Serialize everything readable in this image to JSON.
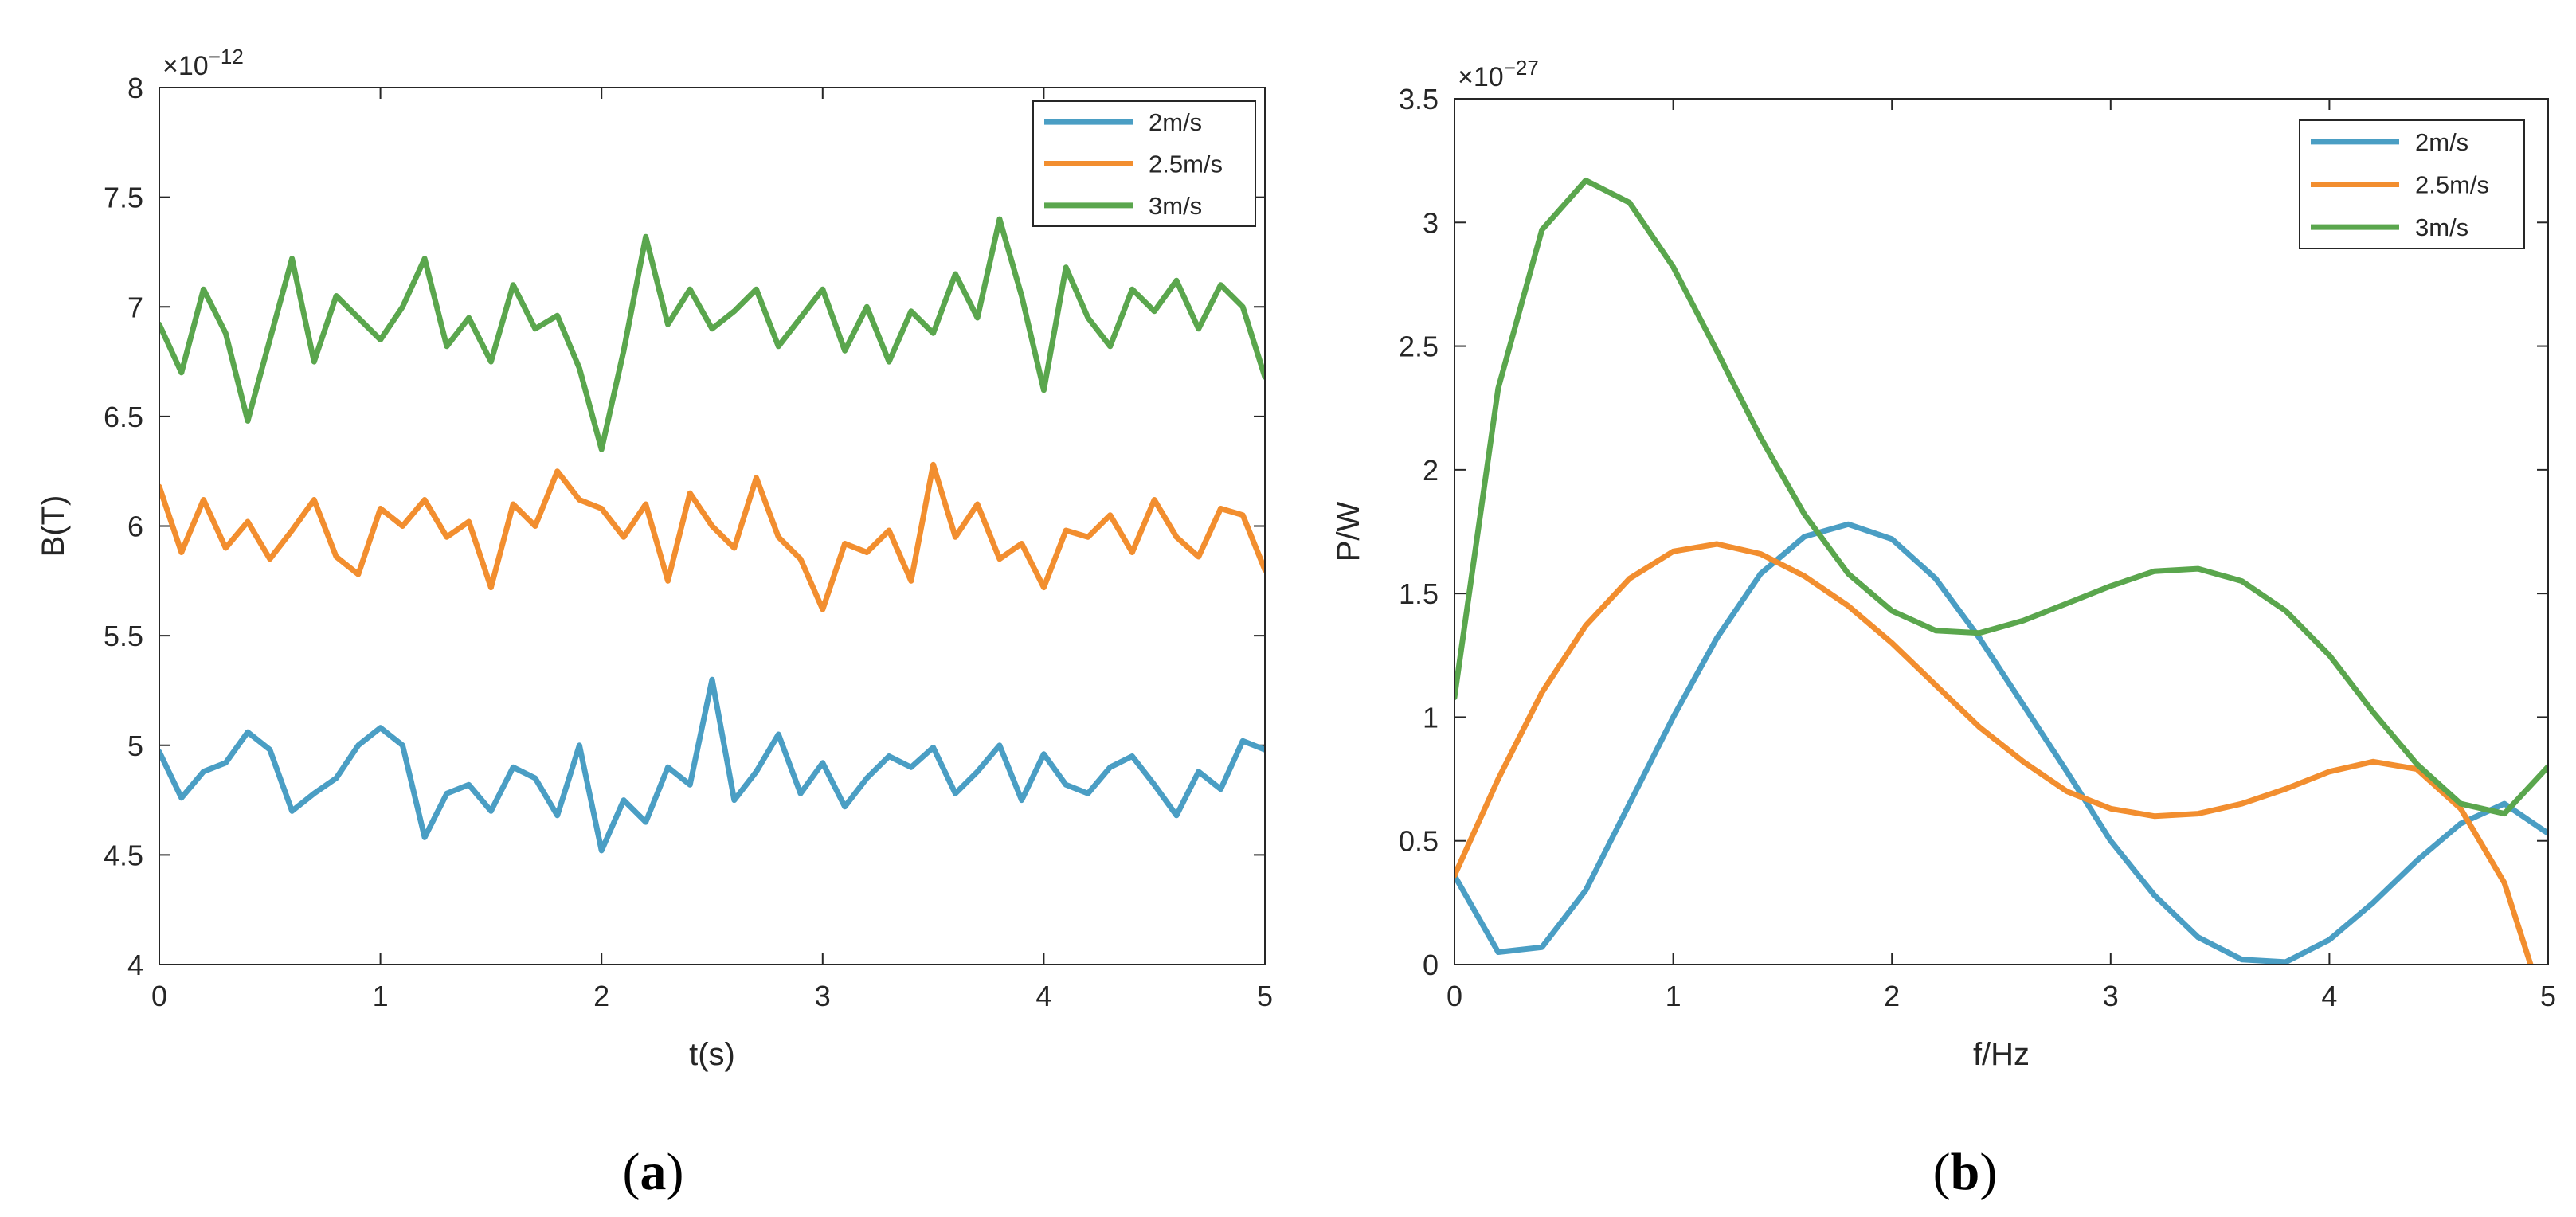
{
  "chart_data": [
    {
      "type": "line",
      "panel_label": "(a)",
      "panel_letter": "a",
      "xlabel": "t(s)",
      "ylabel": "B(T)",
      "multiplier_base": "×10",
      "multiplier_exp": "−12",
      "xlim": [
        0,
        5
      ],
      "ylim": [
        4,
        8
      ],
      "xticks": [
        0,
        1,
        2,
        3,
        4,
        5
      ],
      "yticks": [
        4,
        4.5,
        5,
        5.5,
        6,
        6.5,
        7,
        7.5,
        8
      ],
      "ytick_labels": [
        "4",
        "4.5",
        "5",
        "5.5",
        "6",
        "6.5",
        "7",
        "7.5",
        "8"
      ],
      "grid": false,
      "legend_position": "top-right",
      "series": [
        {
          "name": "2m/s",
          "color": "#4a9ec4",
          "x": [
            0,
            0.1,
            0.2,
            0.3,
            0.4,
            0.5,
            0.6,
            0.7,
            0.8,
            0.9,
            1,
            1.1,
            1.2,
            1.3,
            1.4,
            1.5,
            1.6,
            1.7,
            1.8,
            1.9,
            2,
            2.1,
            2.2,
            2.3,
            2.4,
            2.5,
            2.6,
            2.7,
            2.8,
            2.9,
            3,
            3.1,
            3.2,
            3.3,
            3.4,
            3.5,
            3.6,
            3.7,
            3.8,
            3.9,
            4,
            4.1,
            4.2,
            4.3,
            4.4,
            4.5,
            4.6,
            4.7,
            4.8,
            4.9,
            5
          ],
          "values": [
            4.97,
            4.76,
            4.88,
            4.92,
            5.06,
            4.98,
            4.7,
            4.78,
            4.85,
            5.0,
            5.08,
            5.0,
            4.58,
            4.78,
            4.82,
            4.7,
            4.9,
            4.85,
            4.68,
            5.0,
            4.52,
            4.75,
            4.65,
            4.9,
            4.82,
            5.3,
            4.75,
            4.88,
            5.05,
            4.78,
            4.92,
            4.72,
            4.85,
            4.95,
            4.9,
            4.99,
            4.78,
            4.88,
            5.0,
            4.75,
            4.96,
            4.82,
            4.78,
            4.9,
            4.95,
            4.82,
            4.68,
            4.88,
            4.8,
            5.02,
            4.98
          ]
        },
        {
          "name": "2.5m/s",
          "color": "#f28e2f",
          "x": [
            0,
            0.1,
            0.2,
            0.3,
            0.4,
            0.5,
            0.6,
            0.7,
            0.8,
            0.9,
            1,
            1.1,
            1.2,
            1.3,
            1.4,
            1.5,
            1.6,
            1.7,
            1.8,
            1.9,
            2,
            2.1,
            2.2,
            2.3,
            2.4,
            2.5,
            2.6,
            2.7,
            2.8,
            2.9,
            3,
            3.1,
            3.2,
            3.3,
            3.4,
            3.5,
            3.6,
            3.7,
            3.8,
            3.9,
            4,
            4.1,
            4.2,
            4.3,
            4.4,
            4.5,
            4.6,
            4.7,
            4.8,
            4.9,
            5
          ],
          "values": [
            6.18,
            5.88,
            6.12,
            5.9,
            6.02,
            5.85,
            5.98,
            6.12,
            5.86,
            5.78,
            6.08,
            6.0,
            6.12,
            5.95,
            6.02,
            5.72,
            6.1,
            6.0,
            6.25,
            6.12,
            6.08,
            5.95,
            6.1,
            5.75,
            6.15,
            6.0,
            5.9,
            6.22,
            5.95,
            5.85,
            5.62,
            5.92,
            5.88,
            5.98,
            5.75,
            6.28,
            5.95,
            6.1,
            5.85,
            5.92,
            5.72,
            5.98,
            5.95,
            6.05,
            5.88,
            6.12,
            5.95,
            5.86,
            6.08,
            6.05,
            5.8
          ]
        },
        {
          "name": "3m/s",
          "color": "#5aa64d",
          "x": [
            0,
            0.1,
            0.2,
            0.3,
            0.4,
            0.5,
            0.6,
            0.7,
            0.8,
            0.9,
            1,
            1.1,
            1.2,
            1.3,
            1.4,
            1.5,
            1.6,
            1.7,
            1.8,
            1.9,
            2,
            2.1,
            2.2,
            2.3,
            2.4,
            2.5,
            2.6,
            2.7,
            2.8,
            2.9,
            3,
            3.1,
            3.2,
            3.3,
            3.4,
            3.5,
            3.6,
            3.7,
            3.8,
            3.9,
            4,
            4.1,
            4.2,
            4.3,
            4.4,
            4.5,
            4.6,
            4.7,
            4.8,
            4.9,
            5
          ],
          "values": [
            6.92,
            6.7,
            7.08,
            6.88,
            6.48,
            6.85,
            7.22,
            6.75,
            7.05,
            6.95,
            6.85,
            7.0,
            7.22,
            6.82,
            6.95,
            6.75,
            7.1,
            6.9,
            6.96,
            6.72,
            6.35,
            6.8,
            7.32,
            6.92,
            7.08,
            6.9,
            6.98,
            7.08,
            6.82,
            6.95,
            7.08,
            6.8,
            7.0,
            6.75,
            6.98,
            6.88,
            7.15,
            6.95,
            7.4,
            7.05,
            6.62,
            7.18,
            6.95,
            6.82,
            7.08,
            6.98,
            7.12,
            6.9,
            7.1,
            7.0,
            6.68
          ]
        }
      ]
    },
    {
      "type": "line",
      "panel_label": "(b)",
      "panel_letter": "b",
      "xlabel": "f/Hz",
      "ylabel": "P/W",
      "multiplier_base": "×10",
      "multiplier_exp": "−27",
      "xlim": [
        0,
        5
      ],
      "ylim": [
        0,
        3.5
      ],
      "xticks": [
        0,
        1,
        2,
        3,
        4,
        5
      ],
      "yticks": [
        0,
        0.5,
        1,
        1.5,
        2,
        2.5,
        3,
        3.5
      ],
      "ytick_labels": [
        "0",
        "0.5",
        "1",
        "1.5",
        "2",
        "2.5",
        "3",
        "3.5"
      ],
      "grid": false,
      "legend_position": "top-right",
      "series": [
        {
          "name": "2m/s",
          "color": "#4a9ec4",
          "x": [
            0,
            0.2,
            0.4,
            0.6,
            0.8,
            1.0,
            1.2,
            1.4,
            1.6,
            1.8,
            2.0,
            2.2,
            2.4,
            2.6,
            2.8,
            3.0,
            3.2,
            3.4,
            3.6,
            3.8,
            4.0,
            4.2,
            4.4,
            4.6,
            4.8,
            5.0
          ],
          "values": [
            0.36,
            0.05,
            0.07,
            0.3,
            0.65,
            1.0,
            1.32,
            1.58,
            1.73,
            1.78,
            1.72,
            1.56,
            1.32,
            1.05,
            0.78,
            0.5,
            0.28,
            0.11,
            0.02,
            0.01,
            0.1,
            0.25,
            0.42,
            0.57,
            0.65,
            0.53
          ]
        },
        {
          "name": "2.5m/s",
          "color": "#f28e2f",
          "x": [
            0,
            0.2,
            0.4,
            0.6,
            0.8,
            1.0,
            1.2,
            1.4,
            1.6,
            1.8,
            2.0,
            2.2,
            2.4,
            2.6,
            2.8,
            3.0,
            3.2,
            3.4,
            3.6,
            3.8,
            4.0,
            4.2,
            4.4,
            4.6,
            4.8,
            4.92
          ],
          "values": [
            0.36,
            0.75,
            1.1,
            1.37,
            1.56,
            1.67,
            1.7,
            1.66,
            1.57,
            1.45,
            1.3,
            1.13,
            0.96,
            0.82,
            0.7,
            0.63,
            0.6,
            0.61,
            0.65,
            0.71,
            0.78,
            0.82,
            0.79,
            0.63,
            0.33,
            0.0
          ]
        },
        {
          "name": "3m/s",
          "color": "#5aa64d",
          "x": [
            0,
            0.2,
            0.4,
            0.6,
            0.8,
            1.0,
            1.2,
            1.4,
            1.6,
            1.8,
            2.0,
            2.2,
            2.4,
            2.6,
            2.8,
            3.0,
            3.2,
            3.4,
            3.6,
            3.8,
            4.0,
            4.2,
            4.4,
            4.6,
            4.8,
            5.0
          ],
          "values": [
            1.08,
            2.33,
            2.97,
            3.17,
            3.08,
            2.82,
            2.48,
            2.13,
            1.82,
            1.58,
            1.43,
            1.35,
            1.34,
            1.39,
            1.46,
            1.53,
            1.59,
            1.6,
            1.55,
            1.43,
            1.25,
            1.02,
            0.81,
            0.65,
            0.61,
            0.8
          ]
        }
      ]
    }
  ]
}
